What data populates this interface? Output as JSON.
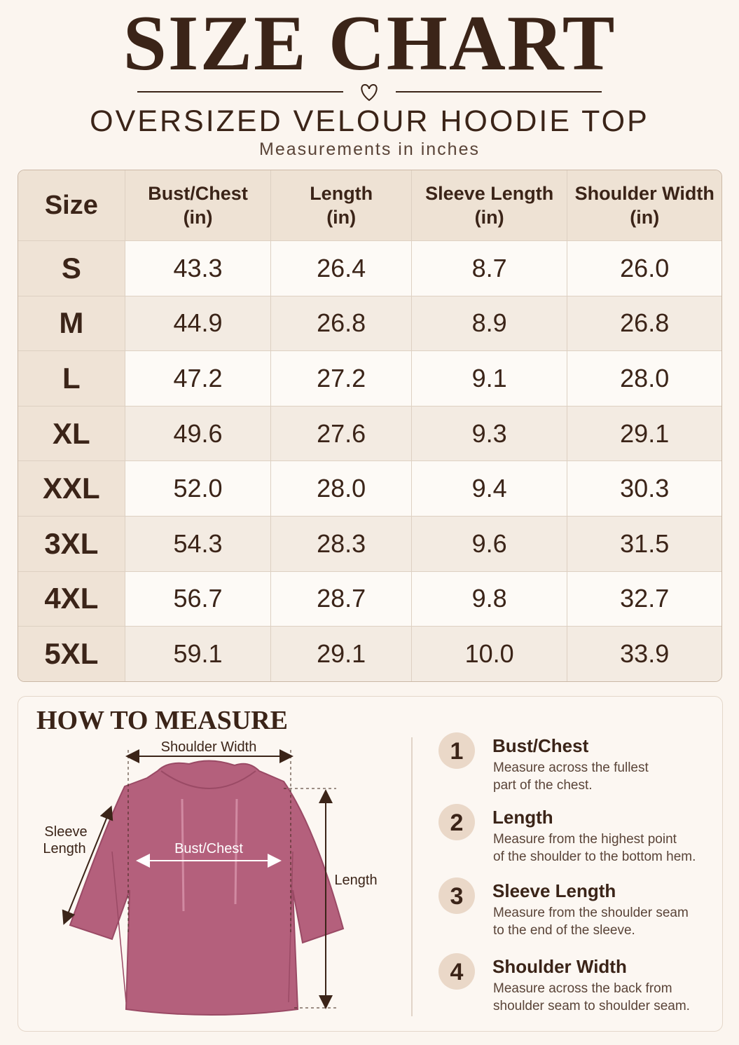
{
  "header": {
    "title": "SIZE CHART",
    "subtitle": "OVERSIZED VELOUR HOODIE TOP",
    "note": "Measurements in inches"
  },
  "table": {
    "columns": [
      [
        "Size"
      ],
      [
        "Bust/Chest",
        "(in)"
      ],
      [
        "Length",
        "(in)"
      ],
      [
        "Sleeve Length",
        "(in)"
      ],
      [
        "Shoulder Width",
        "(in)"
      ]
    ],
    "rows": [
      [
        "S",
        "43.3",
        "26.4",
        "8.7",
        "26.0"
      ],
      [
        "M",
        "44.9",
        "26.8",
        "8.9",
        "26.8"
      ],
      [
        "L",
        "47.2",
        "27.2",
        "9.1",
        "28.0"
      ],
      [
        "XL",
        "49.6",
        "27.6",
        "9.3",
        "29.1"
      ],
      [
        "XXL",
        "52.0",
        "28.0",
        "9.4",
        "30.3"
      ],
      [
        "3XL",
        "54.3",
        "28.3",
        "9.6",
        "31.5"
      ],
      [
        "4XL",
        "56.7",
        "28.7",
        "9.8",
        "32.7"
      ],
      [
        "5XL",
        "59.1",
        "29.1",
        "10.0",
        "33.9"
      ]
    ]
  },
  "how_to_measure": {
    "title": "HOW TO MEASURE",
    "diagram": {
      "shoulder_width": "Shoulder Width",
      "bust_chest": "Bust/Chest",
      "sleeve_length": [
        "Sleeve",
        "Length"
      ],
      "length": "Length"
    },
    "steps": [
      {
        "number": 1,
        "title": "Bust/Chest",
        "text": [
          "Measure across the fullest",
          "part of the chest."
        ]
      },
      {
        "number": 2,
        "title": "Length",
        "text": [
          "Measure from the highest point",
          "of the shoulder to the bottom hem."
        ]
      },
      {
        "number": 3,
        "title": "Sleeve Length",
        "text": [
          "Measure from the shoulder seam",
          "to the end of the sleeve."
        ]
      },
      {
        "number": 4,
        "title": "Shoulder Width",
        "text": [
          "Measure across the back from",
          "shoulder seam to shoulder seam."
        ]
      }
    ]
  }
}
